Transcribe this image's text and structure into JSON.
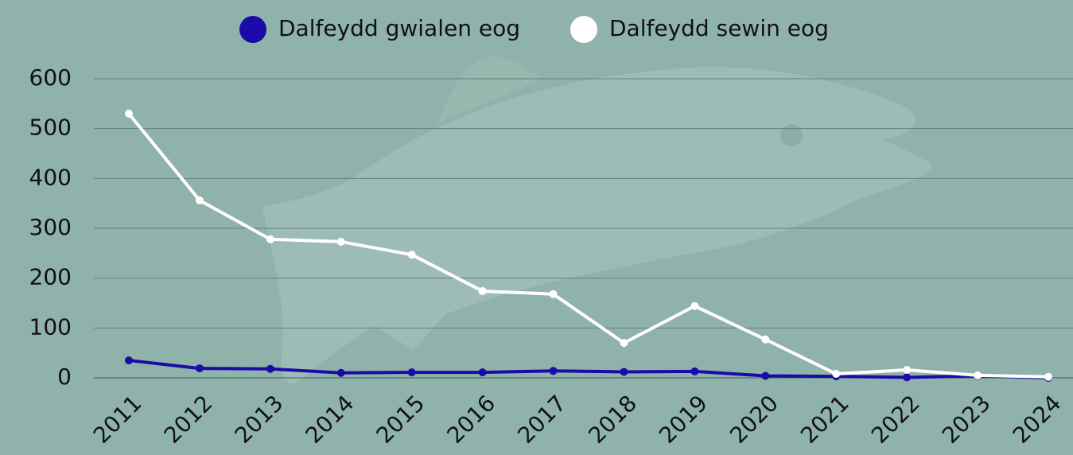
{
  "chart_data": {
    "type": "line",
    "categories": [
      "2011",
      "2012",
      "2013",
      "2014",
      "2015",
      "2016",
      "2017",
      "2018",
      "2019",
      "2020",
      "2021",
      "2022",
      "2023",
      "2024"
    ],
    "series": [
      {
        "name": "Dalfeydd gwialen eog",
        "color": "#1b0ba8",
        "values": [
          35,
          19,
          18,
          10,
          11,
          11,
          14,
          12,
          13,
          4,
          3,
          1,
          4,
          0
        ]
      },
      {
        "name": "Dalfeydd sewin eog",
        "color": "#ffffff",
        "values": [
          530,
          356,
          278,
          273,
          247,
          174,
          168,
          70,
          144,
          77,
          8,
          16,
          5,
          2
        ]
      }
    ],
    "ylim": [
      0,
      600
    ],
    "yticks": [
      0,
      100,
      200,
      300,
      400,
      500,
      600
    ],
    "grid": true
  }
}
